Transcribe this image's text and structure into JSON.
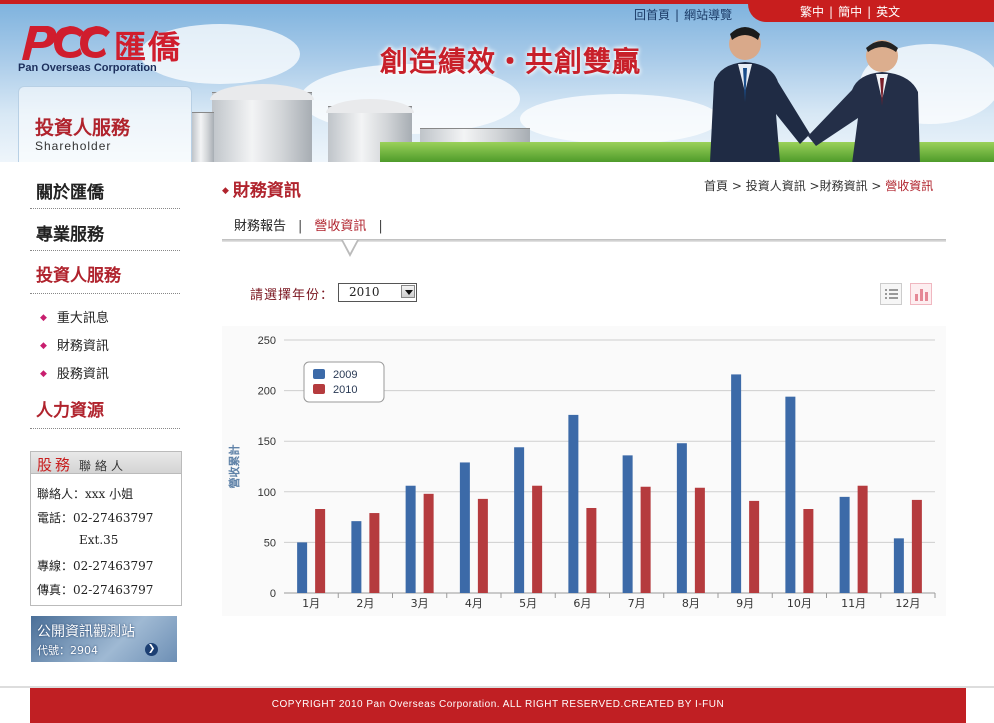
{
  "header": {
    "logo_cn": "匯僑",
    "logo_en": "Pan Overseas Corporation",
    "slogan": "創造績效・共創雙贏",
    "section_cn": "投資人服務",
    "section_en": "Shareholder",
    "top_links": [
      "回首頁",
      "網站導覽"
    ],
    "languages": [
      "繁中",
      "簡中",
      "英文"
    ]
  },
  "sidebar": {
    "main_items": [
      {
        "label": "關於匯僑"
      },
      {
        "label": "專業服務"
      },
      {
        "label": "投資人服務"
      },
      {
        "label": "人力資源"
      }
    ],
    "sub_items": [
      "重大訊息",
      "財務資訊",
      "股務資訊"
    ],
    "contact": {
      "title_main": "股務",
      "title_sub": "聯絡人",
      "lines": [
        "聯絡人：xxx 小姐",
        "電話：02-27463797",
        "Ext.35",
        "專線：02-27463797",
        "傳真：02-27463797"
      ]
    },
    "mops": {
      "title": "公開資訊觀測站",
      "code": "代號：2904"
    }
  },
  "main": {
    "title": "財務資訊",
    "breadcrumb": [
      "首頁",
      "投資人資訊",
      "財務資訊",
      "營收資訊"
    ],
    "tabs": [
      {
        "label": "財務報告"
      },
      {
        "label": "營收資訊"
      }
    ],
    "year_label": "請選擇年份：",
    "year_value": "2010"
  },
  "chart_data": {
    "type": "bar",
    "categories": [
      "1月",
      "2月",
      "3月",
      "4月",
      "5月",
      "6月",
      "7月",
      "8月",
      "9月",
      "10月",
      "11月",
      "12月"
    ],
    "series": [
      {
        "name": "2009",
        "color": "#3c6aa8",
        "values": [
          50,
          71,
          106,
          129,
          144,
          176,
          136,
          148,
          216,
          194,
          95,
          54
        ]
      },
      {
        "name": "2010",
        "color": "#b53b3e",
        "values": [
          83,
          79,
          98,
          93,
          106,
          84,
          105,
          104,
          91,
          83,
          106,
          92
        ]
      }
    ],
    "ylabel": "營收累計",
    "ylim": [
      0,
      250
    ],
    "yticks": [
      0,
      50,
      100,
      150,
      200,
      250
    ],
    "grid": true,
    "legend": "top-left"
  },
  "footer": {
    "copyright": "COPYRIGHT 2010 Pan Overseas Corporation. ALL RIGHT RESERVED.CREATED BY I-FUN"
  }
}
